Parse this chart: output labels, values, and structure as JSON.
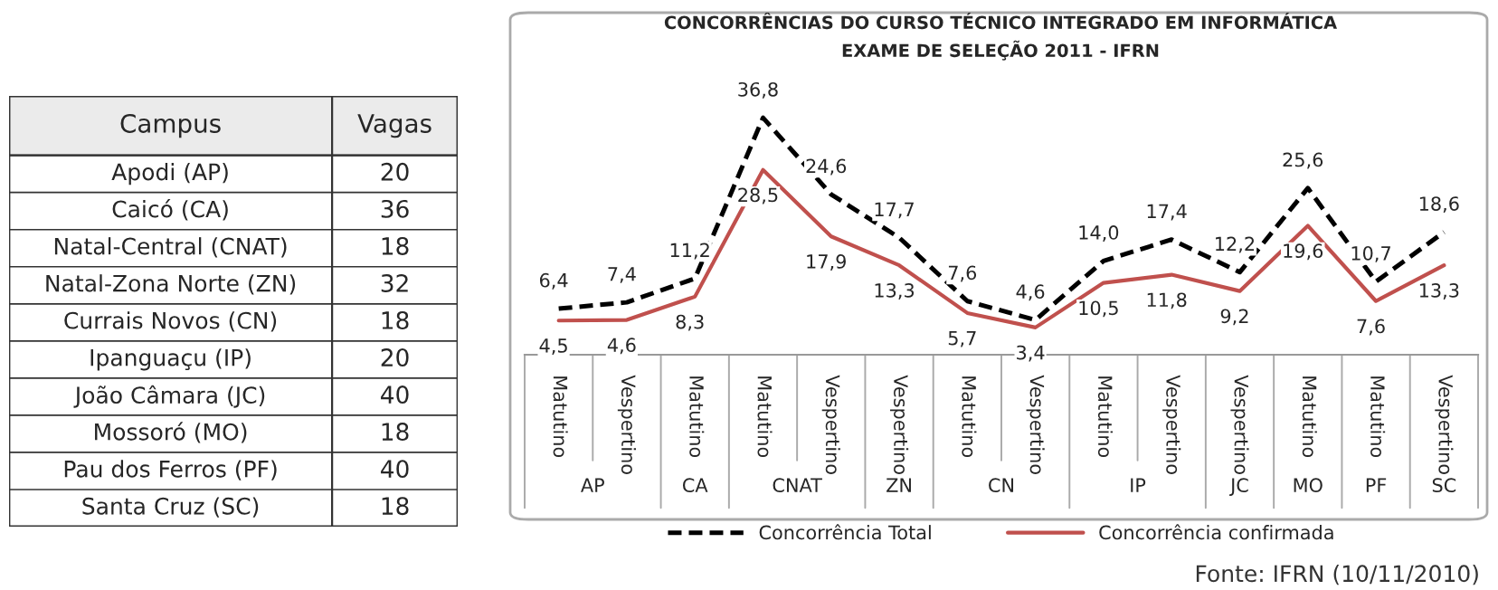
{
  "chart_data": [
    {
      "type": "other",
      "xlabel": "Campus",
      "ylabel": "Vagas",
      "categories": [
        "Apodi (AP)",
        "Caicó (CA)",
        "Natal-Central (CNAT)",
        "Natal-Zona Norte (ZN)",
        "Currais Novos (CN)",
        "Ipanguaçu (IP)",
        "João Câmara (JC)",
        "Mossoró (MO)",
        "Pau dos Ferros (PF)",
        "Santa Cruz (SC)"
      ],
      "values": [
        20,
        36,
        18,
        32,
        18,
        20,
        40,
        18,
        40,
        18
      ],
      "data_labels": true
    },
    {
      "type": "line",
      "title": "CONCORRÊNCIAS DO CURSO TÉCNICO INTEGRADO EM INFORMÁTICA\nEXAME DE SELEÇÃO 2011 - IFRN",
      "categories": [
        "Matutino",
        "Vespertino",
        "Matutino",
        "Matutino",
        "Vespertino",
        "Vespertino",
        "Matutino",
        "Vespertino",
        "Matutino",
        "Vespertino",
        "Vespertino",
        "Matutino",
        "Matutino",
        "Vespertino"
      ],
      "series": [
        {
          "name": "Concorrência Total",
          "color": "#000000",
          "line_style": "dashed",
          "values": [
            6.4,
            7.4,
            11.2,
            36.8,
            24.6,
            17.7,
            7.6,
            4.6,
            14.0,
            17.4,
            12.2,
            25.6,
            10.7,
            18.6
          ],
          "value_labels": [
            "6,4",
            "7,4",
            "11,2",
            "36,8",
            "24,6",
            "17,7",
            "7,6",
            "4,6",
            "14,0",
            "17,4",
            "12,2",
            "25,6",
            "10,7",
            "18,6"
          ]
        },
        {
          "name": "Concorrência confirmada",
          "color": "#c0504d",
          "line_style": "solid",
          "values": [
            4.5,
            4.6,
            8.3,
            28.5,
            17.9,
            13.3,
            5.7,
            3.4,
            10.5,
            11.8,
            9.2,
            19.6,
            7.6,
            13.3
          ],
          "value_labels": [
            "4,5",
            "4,6",
            "8,3",
            "28,5",
            "17,9",
            "13,3",
            "5,7",
            "3,4",
            "10,5",
            "11,8",
            "9,2",
            "19,6",
            "7,6",
            "13,3"
          ]
        }
      ],
      "annotations": [
        "AP",
        "CA",
        "CNAT",
        "ZN",
        "CN",
        "IP",
        "JC",
        "MO",
        "PF",
        "SC",
        "Fonte: IFRN (10/11/2010)"
      ],
      "legend": "bottom",
      "tick_labels": "x",
      "grid": false
    }
  ]
}
